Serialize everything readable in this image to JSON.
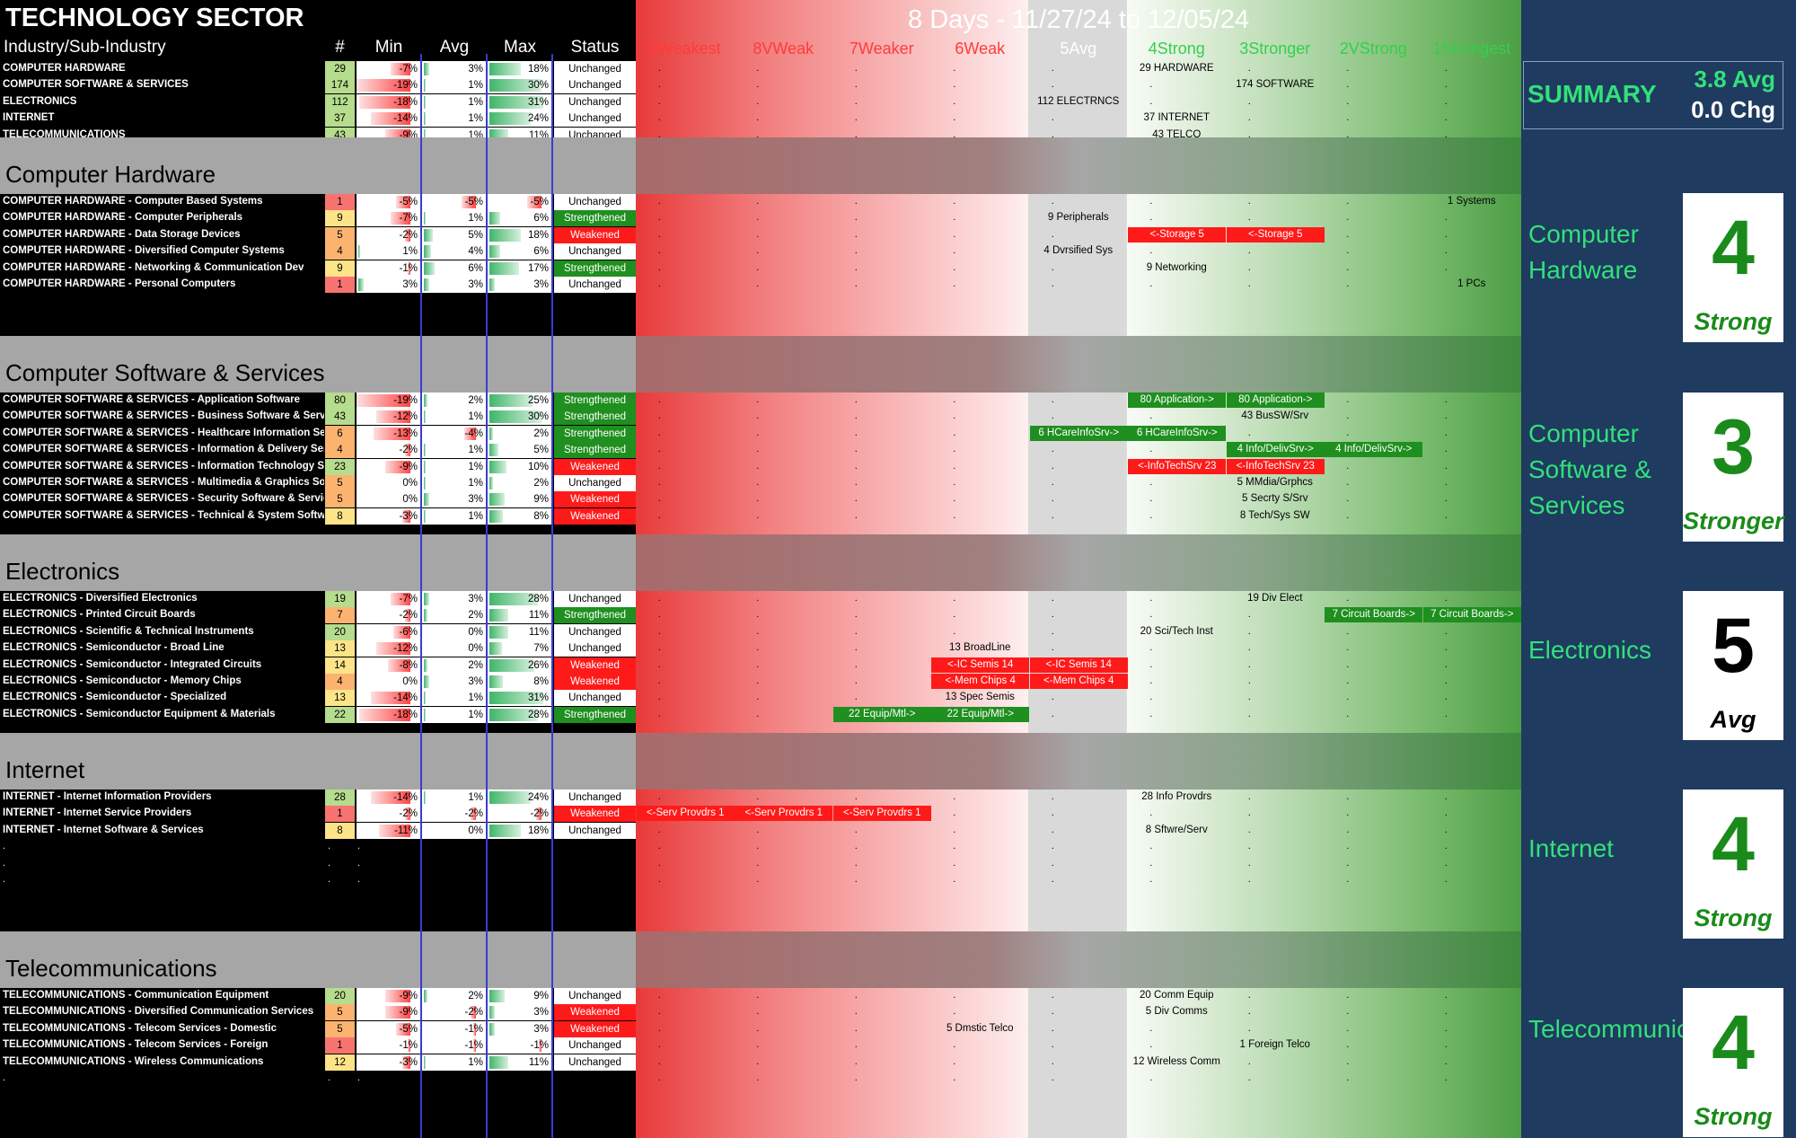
{
  "sector_title": "TECHNOLOGY SECTOR",
  "period_title": "8 Days - 11/27/24 to 12/05/24",
  "headers": {
    "industry": "Industry/Sub-Industry",
    "count": "#",
    "min": "Min",
    "avg": "Avg",
    "max": "Max",
    "status": "Status"
  },
  "strength_columns": [
    {
      "label": "9Weakest",
      "color": "#ff3b3b"
    },
    {
      "label": "8VWeak",
      "color": "#ff3b3b"
    },
    {
      "label": "7Weaker",
      "color": "#ff3b3b"
    },
    {
      "label": "6Weak",
      "color": "#ff3b3b"
    },
    {
      "label": "5Avg",
      "color": "#ffffff"
    },
    {
      "label": "4Strong",
      "color": "#33d04a"
    },
    {
      "label": "3Stronger",
      "color": "#33d04a"
    },
    {
      "label": "2VStrong",
      "color": "#33d04a"
    },
    {
      "label": "1Strongest",
      "color": "#33d04a"
    }
  ],
  "summary": {
    "label": "SUMMARY",
    "avg": "3.8 Avg",
    "chg": "0.0 Chg"
  },
  "overview_rows": [
    {
      "name": "COMPUTER HARDWARE",
      "count": "29",
      "min": "-7%",
      "avg": "3%",
      "max": "18%",
      "status": "Unchanged",
      "tag": {
        "col": 5,
        "text": "29 HARDWARE"
      }
    },
    {
      "name": "COMPUTER SOFTWARE & SERVICES",
      "count": "174",
      "min": "-19%",
      "avg": "1%",
      "max": "30%",
      "status": "Unchanged",
      "tag": {
        "col": 6,
        "text": "174 SOFTWARE"
      }
    },
    {
      "name": "ELECTRONICS",
      "count": "112",
      "min": "-18%",
      "avg": "1%",
      "max": "31%",
      "status": "Unchanged",
      "tag": {
        "col": 4,
        "text": "112 ELECTRNCS"
      }
    },
    {
      "name": "INTERNET",
      "count": "37",
      "min": "-14%",
      "avg": "1%",
      "max": "24%",
      "status": "Unchanged",
      "tag": {
        "col": 5,
        "text": "37 INTERNET"
      }
    },
    {
      "name": "TELECOMMUNICATIONS",
      "count": "43",
      "min": "-9%",
      "avg": "1%",
      "max": "11%",
      "status": "Unchanged",
      "tag": {
        "col": 5,
        "text": "43 TELCO"
      }
    }
  ],
  "groups": [
    {
      "title": "Computer Hardware",
      "panel_name": "Computer Hardware",
      "score": "4",
      "word": "Strong",
      "score_color": "#1a8a1a",
      "rows": [
        {
          "name": "COMPUTER HARDWARE - Computer Based Systems",
          "count": "1",
          "min": "-5%",
          "avg": "-5%",
          "max": "-5%",
          "status": "Unchanged",
          "tags": [
            {
              "col": 8,
              "text": "1 Systems",
              "kind": "plain"
            }
          ]
        },
        {
          "name": "COMPUTER HARDWARE - Computer Peripherals",
          "count": "9",
          "min": "-7%",
          "avg": "1%",
          "max": "6%",
          "status": "Strengthened",
          "tags": [
            {
              "col": 4,
              "text": "9 Peripherals",
              "kind": "plain"
            }
          ]
        },
        {
          "name": "COMPUTER HARDWARE - Data Storage Devices",
          "count": "5",
          "min": "-2%",
          "avg": "5%",
          "max": "18%",
          "status": "Weakened",
          "tags": [
            {
              "col": 5,
              "text": "<-Storage 5",
              "kind": "red"
            },
            {
              "col": 6,
              "text": "<-Storage 5",
              "kind": "red"
            }
          ]
        },
        {
          "name": "COMPUTER HARDWARE - Diversified Computer Systems",
          "count": "4",
          "min": "1%",
          "avg": "4%",
          "max": "6%",
          "status": "Unchanged",
          "tags": [
            {
              "col": 4,
              "text": "4 Dvrsified Sys",
              "kind": "plain"
            }
          ]
        },
        {
          "name": "COMPUTER HARDWARE - Networking & Communication Dev",
          "count": "9",
          "min": "-1%",
          "avg": "6%",
          "max": "17%",
          "status": "Strengthened",
          "tags": [
            {
              "col": 5,
              "text": "9 Networking",
              "kind": "plain"
            }
          ]
        },
        {
          "name": "COMPUTER HARDWARE - Personal Computers",
          "count": "1",
          "min": "3%",
          "avg": "3%",
          "max": "3%",
          "status": "Unchanged",
          "tags": [
            {
              "col": 8,
              "text": "1 PCs",
              "kind": "plain"
            }
          ]
        }
      ]
    },
    {
      "title": "Computer Software & Services",
      "panel_name": "Computer Software & Services",
      "score": "3",
      "word": "Stronger",
      "score_color": "#1a8a1a",
      "rows": [
        {
          "name": "COMPUTER SOFTWARE & SERVICES - Application Software",
          "count": "80",
          "min": "-19%",
          "avg": "2%",
          "max": "25%",
          "status": "Strengthened",
          "tags": [
            {
              "col": 5,
              "text": "80 Application->",
              "kind": "green"
            },
            {
              "col": 6,
              "text": "80 Application->",
              "kind": "green"
            }
          ]
        },
        {
          "name": "COMPUTER SOFTWARE & SERVICES - Business Software & Services",
          "count": "43",
          "min": "-12%",
          "avg": "1%",
          "max": "30%",
          "status": "Strengthened",
          "tags": [
            {
              "col": 6,
              "text": "43 BusSW/Srv",
              "kind": "plain"
            }
          ]
        },
        {
          "name": "COMPUTER SOFTWARE & SERVICES - Healthcare Information Services",
          "count": "6",
          "min": "-13%",
          "avg": "-4%",
          "max": "2%",
          "status": "Strengthened",
          "tags": [
            {
              "col": 4,
              "text": "6 HCareInfoSrv->",
              "kind": "green"
            },
            {
              "col": 5,
              "text": "6 HCareInfoSrv->",
              "kind": "green"
            }
          ]
        },
        {
          "name": "COMPUTER SOFTWARE & SERVICES - Information & Delivery Services",
          "count": "4",
          "min": "-2%",
          "avg": "1%",
          "max": "5%",
          "status": "Strengthened",
          "tags": [
            {
              "col": 6,
              "text": "4 Info/DelivSrv->",
              "kind": "green"
            },
            {
              "col": 7,
              "text": "4 Info/DelivSrv->",
              "kind": "green"
            }
          ]
        },
        {
          "name": "COMPUTER SOFTWARE & SERVICES - Information Technology Services",
          "count": "23",
          "min": "-9%",
          "avg": "1%",
          "max": "10%",
          "status": "Weakened",
          "tags": [
            {
              "col": 5,
              "text": "<-InfoTechSrv 23",
              "kind": "red"
            },
            {
              "col": 6,
              "text": "<-InfoTechSrv 23",
              "kind": "red"
            }
          ]
        },
        {
          "name": "COMPUTER SOFTWARE & SERVICES - Multimedia & Graphics Software",
          "count": "5",
          "min": "0%",
          "avg": "1%",
          "max": "2%",
          "status": "Unchanged",
          "tags": [
            {
              "col": 6,
              "text": "5 MMdia/Grphcs",
              "kind": "plain"
            }
          ]
        },
        {
          "name": "COMPUTER SOFTWARE & SERVICES - Security Software & Services",
          "count": "5",
          "min": "0%",
          "avg": "3%",
          "max": "9%",
          "status": "Weakened",
          "tags": [
            {
              "col": 6,
              "text": "5 Secrty S/Srv",
              "kind": "plain"
            }
          ]
        },
        {
          "name": "COMPUTER SOFTWARE & SERVICES - Technical & System Software",
          "count": "8",
          "min": "-3%",
          "avg": "1%",
          "max": "8%",
          "status": "Weakened",
          "tags": [
            {
              "col": 6,
              "text": "8 Tech/Sys SW",
              "kind": "plain"
            }
          ]
        }
      ]
    },
    {
      "title": "Electronics",
      "panel_name": "Electronics",
      "score": "5",
      "word": "Avg",
      "score_color": "#000000",
      "rows": [
        {
          "name": "ELECTRONICS - Diversified Electronics",
          "count": "19",
          "min": "-7%",
          "avg": "3%",
          "max": "28%",
          "status": "Unchanged",
          "tags": [
            {
              "col": 6,
              "text": "19 Div Elect",
              "kind": "plain"
            }
          ]
        },
        {
          "name": "ELECTRONICS - Printed Circuit Boards",
          "count": "7",
          "min": "-2%",
          "avg": "2%",
          "max": "11%",
          "status": "Strengthened",
          "tags": [
            {
              "col": 7,
              "text": "7 Circuit Boards->",
              "kind": "green"
            },
            {
              "col": 8,
              "text": "7 Circuit Boards->",
              "kind": "green"
            }
          ]
        },
        {
          "name": "ELECTRONICS - Scientific & Technical Instruments",
          "count": "20",
          "min": "-6%",
          "avg": "0%",
          "max": "11%",
          "status": "Unchanged",
          "tags": [
            {
              "col": 5,
              "text": "20 Sci/Tech Inst",
              "kind": "plain"
            }
          ]
        },
        {
          "name": "ELECTRONICS - Semiconductor - Broad Line",
          "count": "13",
          "min": "-12%",
          "avg": "0%",
          "max": "7%",
          "status": "Unchanged",
          "tags": [
            {
              "col": 3,
              "text": "13 BroadLine",
              "kind": "plain"
            }
          ]
        },
        {
          "name": "ELECTRONICS - Semiconductor - Integrated Circuits",
          "count": "14",
          "min": "-8%",
          "avg": "2%",
          "max": "26%",
          "status": "Weakened",
          "tags": [
            {
              "col": 3,
              "text": "<-IC Semis 14",
              "kind": "red"
            },
            {
              "col": 4,
              "text": "<-IC Semis 14",
              "kind": "red"
            }
          ]
        },
        {
          "name": "ELECTRONICS - Semiconductor - Memory Chips",
          "count": "4",
          "min": "0%",
          "avg": "3%",
          "max": "8%",
          "status": "Weakened",
          "tags": [
            {
              "col": 3,
              "text": "<-Mem Chips 4",
              "kind": "red"
            },
            {
              "col": 4,
              "text": "<-Mem Chips 4",
              "kind": "red"
            }
          ]
        },
        {
          "name": "ELECTRONICS - Semiconductor - Specialized",
          "count": "13",
          "min": "-14%",
          "avg": "1%",
          "max": "31%",
          "status": "Unchanged",
          "tags": [
            {
              "col": 3,
              "text": "13 Spec Semis",
              "kind": "plain"
            }
          ]
        },
        {
          "name": "ELECTRONICS - Semiconductor Equipment & Materials",
          "count": "22",
          "min": "-18%",
          "avg": "1%",
          "max": "28%",
          "status": "Strengthened",
          "tags": [
            {
              "col": 2,
              "text": "22 Equip/Mtl->",
              "kind": "green"
            },
            {
              "col": 3,
              "text": "22 Equip/Mtl->",
              "kind": "green"
            }
          ]
        }
      ]
    },
    {
      "title": "Internet",
      "panel_name": "Internet",
      "score": "4",
      "word": "Strong",
      "score_color": "#1a8a1a",
      "rows": [
        {
          "name": "INTERNET - Internet Information Providers",
          "count": "28",
          "min": "-14%",
          "avg": "1%",
          "max": "24%",
          "status": "Unchanged",
          "tags": [
            {
              "col": 5,
              "text": "28 Info Provdrs",
              "kind": "plain"
            }
          ]
        },
        {
          "name": "INTERNET - Internet Service Providers",
          "count": "1",
          "min": "-2%",
          "avg": "-2%",
          "max": "-2%",
          "status": "Weakened",
          "tags": [
            {
              "col": 0,
              "text": "<-Serv Provdrs 1",
              "kind": "red"
            },
            {
              "col": 1,
              "text": "<-Serv Provdrs 1",
              "kind": "red"
            },
            {
              "col": 2,
              "text": "<-Serv Provdrs 1",
              "kind": "red"
            }
          ]
        },
        {
          "name": "INTERNET - Internet Software & Services",
          "count": "8",
          "min": "-11%",
          "avg": "0%",
          "max": "18%",
          "status": "Unchanged",
          "tags": [
            {
              "col": 5,
              "text": "8 Sftwre/Serv",
              "kind": "plain"
            }
          ]
        }
      ]
    },
    {
      "title": "Telecommunications",
      "panel_name": "Telecommunications",
      "score": "4",
      "word": "Strong",
      "score_color": "#1a8a1a",
      "rows": [
        {
          "name": "TELECOMMUNICATIONS - Communication Equipment",
          "count": "20",
          "min": "-9%",
          "avg": "2%",
          "max": "9%",
          "status": "Unchanged",
          "tags": [
            {
              "col": 5,
              "text": "20 Comm Equip",
              "kind": "plain"
            }
          ]
        },
        {
          "name": "TELECOMMUNICATIONS - Diversified Communication Services",
          "count": "5",
          "min": "-9%",
          "avg": "-2%",
          "max": "3%",
          "status": "Weakened",
          "tags": [
            {
              "col": 5,
              "text": "5 Div Comms",
              "kind": "plain"
            }
          ]
        },
        {
          "name": "TELECOMMUNICATIONS - Telecom Services - Domestic",
          "count": "5",
          "min": "-5%",
          "avg": "-1%",
          "max": "3%",
          "status": "Weakened",
          "tags": [
            {
              "col": 3,
              "text": "5 Dmstic Telco",
              "kind": "plain"
            }
          ]
        },
        {
          "name": "TELECOMMUNICATIONS - Telecom Services - Foreign",
          "count": "1",
          "min": "-1%",
          "avg": "-1%",
          "max": "-1%",
          "status": "Unchanged",
          "tags": [
            {
              "col": 6,
              "text": "1 Foreign Telco",
              "kind": "plain"
            }
          ]
        },
        {
          "name": "TELECOMMUNICATIONS - Wireless Communications",
          "count": "12",
          "min": "-3%",
          "avg": "1%",
          "max": "11%",
          "status": "Unchanged",
          "tags": [
            {
              "col": 5,
              "text": "12 Wireless Comm",
              "kind": "plain"
            }
          ]
        }
      ]
    }
  ],
  "panel_names": [
    "Computer Hardware",
    "Computer Software & Services",
    "Electronics",
    "Internet",
    "Telecommunications"
  ],
  "colors": {
    "red_tag": "#ff1a1a",
    "green_tag": "#1f8f1f",
    "strengthened": "#1f8f1f",
    "weakened": "#ff1a1a",
    "panel_bg": "#1f3b60",
    "panel_text": "#33e07a"
  }
}
